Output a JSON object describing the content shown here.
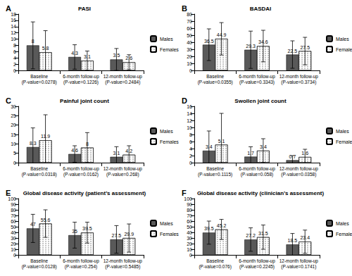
{
  "chart_data": [
    {
      "type": "bar",
      "panel": "A",
      "title": "PASI",
      "categories": [
        "Baseline",
        "6-month follow-up",
        "12-month follow-up"
      ],
      "category_notes": [
        "(P-value=0.0278)",
        "(P-value=0.1226)",
        "(P-value=0.2484)"
      ],
      "series": [
        {
          "name": "Males",
          "color": "#595959",
          "values": [
            8,
            4.3,
            3.5
          ],
          "errors": [
            7.5,
            3.9,
            3.5
          ]
        },
        {
          "name": "Females",
          "color": "#ffffff",
          "values": [
            5.8,
            3.1,
            2.6
          ],
          "errors": [
            6.9,
            3.1,
            2.4
          ]
        }
      ],
      "ylim": [
        0,
        18
      ],
      "yticks": [
        0,
        2,
        4,
        6,
        8,
        10,
        12,
        14,
        16,
        18
      ],
      "grid": false,
      "legend": "right",
      "data_labels": true
    },
    {
      "type": "bar",
      "panel": "B",
      "title": "BASDAI",
      "categories": [
        "Baseline",
        "6-month follow-up",
        "12-month follow-up"
      ],
      "category_notes": [
        "(P-value=0.0355)",
        "(P-value=0.3343)",
        "(P-value=0.3734)"
      ],
      "series": [
        {
          "name": "Males",
          "color": "#595959",
          "values": [
            36.5,
            29.3,
            22.5
          ],
          "errors": [
            22.5,
            26.5,
            19.5
          ]
        },
        {
          "name": "Females",
          "color": "#ffffff",
          "values": [
            44.9,
            34.6,
            27.5
          ],
          "errors": [
            23,
            22.4,
            19.5
          ]
        }
      ],
      "ylim": [
        0,
        80
      ],
      "yticks": [
        0,
        10,
        20,
        30,
        40,
        50,
        60,
        70,
        80
      ],
      "grid": false,
      "legend": "right",
      "data_labels": true
    },
    {
      "type": "bar",
      "panel": "C",
      "title": "Painful joint count",
      "categories": [
        "Baseline",
        "6-month follow-up",
        "12-month follow-up"
      ],
      "category_notes": [
        "(P-value=0.0318)",
        "(P-value=0.0162)",
        "(P-value=0.268)"
      ],
      "series": [
        {
          "name": "Males",
          "color": "#595959",
          "values": [
            8.3,
            4.6,
            3.1
          ],
          "errors": [
            10.2,
            4.4,
            5.4
          ]
        },
        {
          "name": "Females",
          "color": "#ffffff",
          "values": [
            11.9,
            8,
            4.2
          ],
          "errors": [
            13.6,
            8,
            4.8
          ]
        }
      ],
      "ylim": [
        0,
        30
      ],
      "yticks": [
        0,
        5,
        10,
        15,
        20,
        25,
        30
      ],
      "grid": false,
      "legend": "right",
      "data_labels": true
    },
    {
      "type": "bar",
      "panel": "D",
      "title": "Swollen joint count",
      "categories": [
        "Baseline",
        "6-month follow-up",
        "12-month follow-up"
      ],
      "category_notes": [
        "(P-value=0.1115)",
        "(P-value=0.058)",
        "(P-value=0.0358)"
      ],
      "series": [
        {
          "name": "Males",
          "color": "#595959",
          "values": [
            3.4,
            1.7,
            0.7
          ],
          "errors": [
            5.6,
            2.8,
            1.3
          ]
        },
        {
          "name": "Females",
          "color": "#ffffff",
          "values": [
            5.1,
            3.4,
            1.6
          ],
          "errors": [
            8.9,
            3.4,
            2.2
          ]
        }
      ],
      "ylim": [
        0,
        16
      ],
      "yticks": [
        0,
        2,
        4,
        6,
        8,
        10,
        12,
        14,
        16
      ],
      "grid": false,
      "legend": "right",
      "data_labels": true
    },
    {
      "type": "bar",
      "panel": "E",
      "title": "Global disease activity (patient’s assessment)",
      "categories": [
        "Baseline",
        "6-month follow-up",
        "12-month follow-up"
      ],
      "category_notes": [
        "(P-value=0.0128)",
        "(P-value=0.254)",
        "(P-value=0.5485)"
      ],
      "series": [
        {
          "name": "Males",
          "color": "#595959",
          "values": [
            47,
            35,
            27.5
          ],
          "errors": [
            25,
            23,
            24.5
          ]
        },
        {
          "name": "Females",
          "color": "#ffffff",
          "values": [
            55.6,
            39.5,
            29.9
          ],
          "errors": [
            24.4,
            18.5,
            25
          ]
        }
      ],
      "ylim": [
        0,
        100
      ],
      "yticks": [
        0,
        10,
        20,
        30,
        40,
        50,
        60,
        70,
        80,
        90,
        100
      ],
      "grid": false,
      "legend": "right",
      "data_labels": true
    },
    {
      "type": "bar",
      "panel": "F",
      "title": "Global disease activity (clinician’s assessment)",
      "categories": [
        "Baseline",
        "6-month follow-up",
        "12-month follow-up"
      ],
      "category_notes": [
        "(P-value=0.076)",
        "(P-value=0.2245)",
        "(P-value=0.1741)"
      ],
      "series": [
        {
          "name": "Males",
          "color": "#595959",
          "values": [
            39.5,
            27.2,
            18.5
          ],
          "errors": [
            20.5,
            20.8,
            19.5
          ]
        },
        {
          "name": "Females",
          "color": "#ffffff",
          "values": [
            45.2,
            31.5,
            23.4
          ],
          "errors": [
            17.8,
            21.5,
            20.6
          ]
        }
      ],
      "ylim": [
        0,
        100
      ],
      "yticks": [
        0,
        10,
        20,
        30,
        40,
        50,
        60,
        70,
        80,
        90,
        100
      ],
      "grid": false,
      "legend": "right",
      "data_labels": true
    }
  ]
}
